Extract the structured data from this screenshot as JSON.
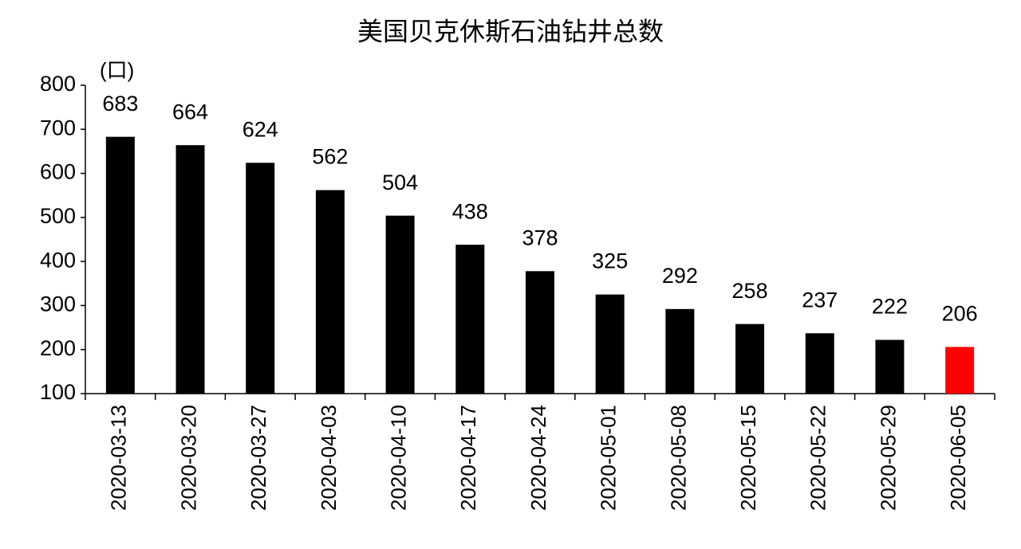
{
  "chart_data": {
    "type": "bar",
    "title": "美国贝克休斯石油钻井总数",
    "y_axis_label": "(口)",
    "categories": [
      "2020-03-13",
      "2020-03-20",
      "2020-03-27",
      "2020-04-03",
      "2020-04-10",
      "2020-04-17",
      "2020-04-24",
      "2020-05-01",
      "2020-05-08",
      "2020-05-15",
      "2020-05-22",
      "2020-05-29",
      "2020-06-05"
    ],
    "values": [
      683,
      664,
      624,
      562,
      504,
      438,
      378,
      325,
      292,
      258,
      237,
      222,
      206
    ],
    "colors": [
      "#000000",
      "#000000",
      "#000000",
      "#000000",
      "#000000",
      "#000000",
      "#000000",
      "#000000",
      "#000000",
      "#000000",
      "#000000",
      "#000000",
      "#ff0000"
    ],
    "ylim": [
      100,
      800
    ],
    "yticks": [
      100,
      200,
      300,
      400,
      500,
      600,
      700,
      800
    ],
    "grid": false
  }
}
